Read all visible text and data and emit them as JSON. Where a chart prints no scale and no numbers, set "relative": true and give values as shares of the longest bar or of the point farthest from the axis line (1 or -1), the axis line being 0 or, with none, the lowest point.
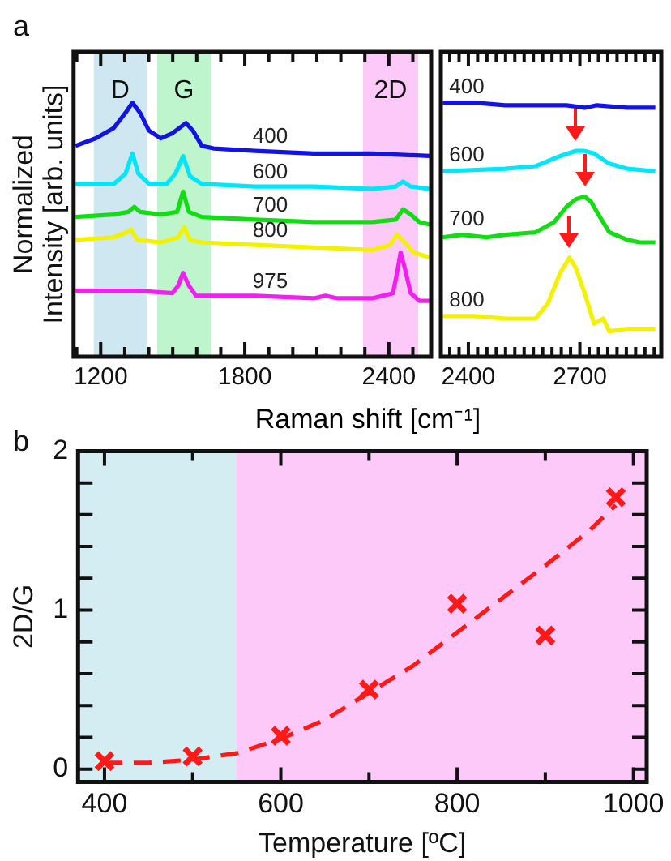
{
  "chart_data": [
    {
      "type": "line",
      "title": "a",
      "xlabel": "Raman shift [cm⁻¹]",
      "ylabel": "Normalized\nIntensity [arb. units]",
      "relative": true,
      "xlim": [
        1087,
        2576
      ],
      "xticks": [
        {
          "value": 1100,
          "label": null
        },
        1200,
        {
          "value": 1300,
          "label": null
        },
        {
          "value": 1400,
          "label": null
        },
        {
          "value": 1500,
          "label": null
        },
        {
          "value": 1600,
          "label": null
        },
        {
          "value": 1700,
          "label": null
        },
        1800,
        {
          "value": 1900,
          "label": null
        },
        {
          "value": 2000,
          "label": null
        },
        {
          "value": 2100,
          "label": null
        },
        {
          "value": 2200,
          "label": null
        },
        {
          "value": 2300,
          "label": null
        },
        2400,
        {
          "value": 2500,
          "label": null
        }
      ],
      "tick_labels": "x",
      "grid": false,
      "legend": false,
      "marker": "none",
      "bands": [
        {
          "axis": "x",
          "from": 1171,
          "to": 1391,
          "label": "D",
          "color": "#cfe7f0"
        },
        {
          "axis": "x",
          "from": 1435,
          "to": 1658,
          "label": "G",
          "color": "#bff5cc"
        },
        {
          "axis": "x",
          "from": 2292,
          "to": 2522,
          "label": "2D",
          "color": "#fdc9f8"
        }
      ],
      "series": [
        {
          "name": "400",
          "color": "#1414e0",
          "x": [
            1095,
            1180,
            1254,
            1303,
            1332,
            1364,
            1401,
            1450,
            1499,
            1555,
            1584,
            1621,
            1670,
            1842,
            2087,
            2331,
            2571
          ],
          "values": [
            0.83,
            0.86,
            0.9,
            0.96,
            1,
            0.96,
            0.89,
            0.86,
            0.88,
            0.92,
            0.89,
            0.83,
            0.82,
            0.81,
            0.8,
            0.8,
            0.79
          ]
        },
        {
          "name": "600",
          "color": "#00e6f8",
          "x": [
            1095,
            1254,
            1303,
            1332,
            1357,
            1401,
            1474,
            1511,
            1543,
            1572,
            1621,
            1842,
            2087,
            2331,
            2429,
            2459,
            2491,
            2571
          ],
          "values": [
            0.68,
            0.68,
            0.72,
            0.8,
            0.72,
            0.68,
            0.68,
            0.72,
            0.79,
            0.71,
            0.68,
            0.67,
            0.67,
            0.66,
            0.67,
            0.69,
            0.67,
            0.66
          ]
        },
        {
          "name": "700",
          "color": "#14dc14",
          "x": [
            1095,
            1254,
            1315,
            1340,
            1364,
            1450,
            1518,
            1543,
            1567,
            1621,
            1842,
            2087,
            2331,
            2429,
            2459,
            2491,
            2527,
            2571
          ],
          "values": [
            0.55,
            0.56,
            0.57,
            0.59,
            0.57,
            0.56,
            0.57,
            0.65,
            0.57,
            0.55,
            0.54,
            0.53,
            0.53,
            0.54,
            0.58,
            0.56,
            0.53,
            0.52
          ]
        },
        {
          "name": "800",
          "color": "#f2f200",
          "x": [
            1095,
            1254,
            1308,
            1327,
            1352,
            1450,
            1523,
            1548,
            1572,
            1621,
            1842,
            2087,
            2331,
            2405,
            2434,
            2466,
            2503,
            2571
          ],
          "values": [
            0.46,
            0.47,
            0.49,
            0.5,
            0.46,
            0.45,
            0.47,
            0.51,
            0.46,
            0.45,
            0.44,
            0.43,
            0.42,
            0.44,
            0.48,
            0.45,
            0.41,
            0.39
          ]
        },
        {
          "name": "975",
          "color": "#f020f0",
          "x": [
            1095,
            1254,
            1352,
            1499,
            1523,
            1543,
            1567,
            1597,
            1842,
            2087,
            2136,
            2185,
            2331,
            2417,
            2434,
            2449,
            2466,
            2491,
            2527,
            2571
          ],
          "values": [
            0.26,
            0.26,
            0.26,
            0.25,
            0.28,
            0.33,
            0.28,
            0.24,
            0.24,
            0.23,
            0.24,
            0.23,
            0.23,
            0.25,
            0.33,
            0.41,
            0.35,
            0.25,
            0.22,
            0.22
          ]
        }
      ]
    },
    {
      "type": "line",
      "relative": true,
      "xlim": [
        2326,
        2919
      ],
      "xticks": [
        {
          "value": 2350,
          "label": null
        },
        {
          "value": 2375,
          "label": null
        },
        2400,
        {
          "value": 2425,
          "label": null
        },
        {
          "value": 2450,
          "label": null
        },
        {
          "value": 2475,
          "label": null
        },
        {
          "value": 2500,
          "label": null
        },
        {
          "value": 2525,
          "label": null
        },
        {
          "value": 2550,
          "label": null
        },
        {
          "value": 2575,
          "label": null
        },
        {
          "value": 2600,
          "label": null
        },
        {
          "value": 2625,
          "label": null
        },
        {
          "value": 2650,
          "label": null
        },
        {
          "value": 2675,
          "label": null
        },
        2700,
        {
          "value": 2725,
          "label": null
        },
        {
          "value": 2750,
          "label": null
        },
        {
          "value": 2775,
          "label": null
        },
        {
          "value": 2800,
          "label": null
        },
        {
          "value": 2825,
          "label": null
        },
        {
          "value": 2850,
          "label": null
        },
        {
          "value": 2875,
          "label": null
        },
        {
          "value": 2900,
          "label": null
        }
      ],
      "tick_labels": "x",
      "grid": false,
      "legend": false,
      "marker": "none",
      "series": [
        {
          "name": "400",
          "color": "#1414e0",
          "x": [
            2331,
            2416,
            2499,
            2581,
            2664,
            2713,
            2746,
            2828,
            2903
          ],
          "values": [
            1,
            1,
            0.99,
            0.99,
            0.99,
            0.98,
            0.99,
            0.98,
            0.98
          ]
        },
        {
          "name": "600",
          "color": "#00e6f8",
          "x": [
            2331,
            2499,
            2581,
            2647,
            2688,
            2713,
            2738,
            2779,
            2828,
            2903
          ],
          "values": [
            0.73,
            0.74,
            0.75,
            0.79,
            0.81,
            0.81,
            0.8,
            0.76,
            0.74,
            0.73
          ]
        },
        {
          "name": "700",
          "color": "#14dc14",
          "x": [
            2331,
            2383,
            2449,
            2499,
            2581,
            2631,
            2664,
            2689,
            2713,
            2730,
            2754,
            2779,
            2828,
            2861,
            2903
          ],
          "values": [
            0.47,
            0.48,
            0.47,
            0.48,
            0.49,
            0.53,
            0.59,
            0.62,
            0.63,
            0.61,
            0.55,
            0.49,
            0.46,
            0.45,
            0.45
          ]
        },
        {
          "name": "800",
          "color": "#f2f200",
          "x": [
            2331,
            2416,
            2499,
            2581,
            2614,
            2647,
            2672,
            2689,
            2713,
            2738,
            2763,
            2779,
            2828,
            2878,
            2903
          ],
          "values": [
            0.16,
            0.16,
            0.15,
            0.15,
            0.21,
            0.33,
            0.39,
            0.35,
            0.25,
            0.13,
            0.15,
            0.1,
            0.11,
            0.11,
            0.11
          ]
        }
      ]
    },
    {
      "type": "scatter",
      "title": "b",
      "xlabel": "Temperature [ºC]",
      "ylabel": "2D/G",
      "xlim": [
        370,
        1015
      ],
      "ylim": [
        -0.08,
        2
      ],
      "xticks": [
        400,
        {
          "value": 500,
          "label": null
        },
        600,
        {
          "value": 700,
          "label": null
        },
        800,
        {
          "value": 900,
          "label": null
        },
        1000
      ],
      "yticks": [
        0,
        {
          "value": 0.2,
          "label": null
        },
        {
          "value": 0.4,
          "label": null
        },
        {
          "value": 0.6,
          "label": null
        },
        {
          "value": 0.8,
          "label": null
        },
        1,
        {
          "value": 1.2,
          "label": null
        },
        {
          "value": 1.4,
          "label": null
        },
        {
          "value": 1.6,
          "label": null
        },
        {
          "value": 1.8,
          "label": null
        },
        2
      ],
      "grid": false,
      "legend": false,
      "bands": [
        {
          "axis": "x",
          "from": 370,
          "to": 550,
          "color": "#d3edf3"
        },
        {
          "axis": "x",
          "from": 550,
          "to": 1015,
          "color": "#fdc9f8"
        }
      ],
      "series": [
        {
          "type": "line",
          "color": "#ff1a1a",
          "line_style": "dashed",
          "marker": "none",
          "x": [
            400,
            450,
            500,
            550,
            600,
            650,
            700,
            750,
            800,
            850,
            900,
            950,
            980
          ],
          "values": [
            0.04,
            0.04,
            0.06,
            0.1,
            0.19,
            0.31,
            0.48,
            0.65,
            0.86,
            1.07,
            1.28,
            1.5,
            1.66
          ]
        },
        {
          "type": "scatter",
          "color": "#ff1a1a",
          "marker": "cross",
          "x": [
            400,
            500,
            600,
            700,
            800,
            900,
            980
          ],
          "values": [
            0.05,
            0.08,
            0.21,
            0.5,
            1.04,
            0.84,
            1.71
          ]
        }
      ]
    }
  ]
}
